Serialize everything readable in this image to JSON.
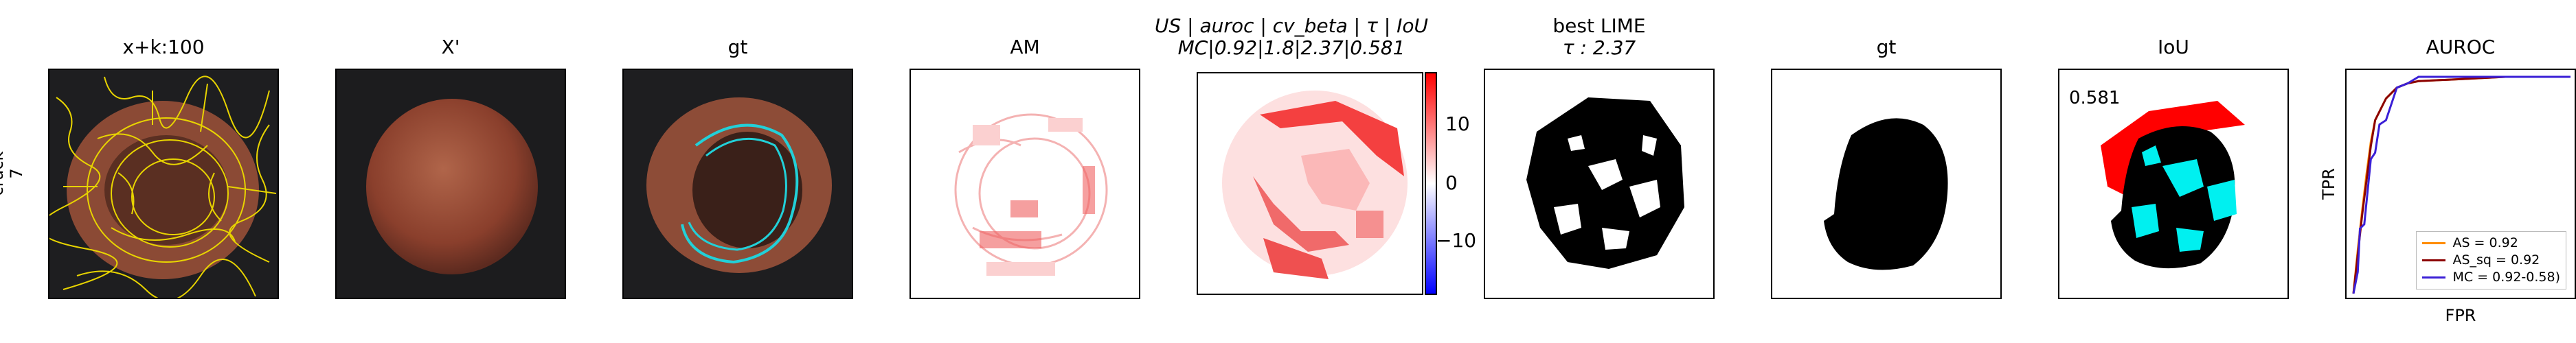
{
  "row_label": {
    "line1": "crack",
    "line2": "7"
  },
  "panels": [
    {
      "title": "x+k:100"
    },
    {
      "title": "X'"
    },
    {
      "title": "gt"
    },
    {
      "title": "AM"
    },
    {
      "title_line1": "US | auroc | cv_beta | τ | IoU",
      "title_line2": "MC|0.92|1.8|2.37|0.581"
    },
    {
      "title_line1": "best LIME",
      "title_line2": "τ : 2.37"
    },
    {
      "title": "gt"
    },
    {
      "title": "IoU",
      "annotation": "0.581"
    },
    {
      "title": "AUROC"
    }
  ],
  "colorbar": {
    "ticks": [
      "10",
      "0",
      "−10"
    ],
    "colors": {
      "top": "#ff0000",
      "mid": "#ffffff",
      "bottom": "#0000ff"
    }
  },
  "chart_data": {
    "type": "line",
    "title": "AUROC",
    "xlabel": "FPR",
    "ylabel": "TPR",
    "xlim": [
      0,
      1
    ],
    "ylim": [
      0,
      1
    ],
    "legend_position": "lower-right",
    "series": [
      {
        "name": "AS = 0.92",
        "color": "#ff8c00",
        "x": [
          0,
          0.02,
          0.04,
          0.06,
          0.08,
          0.1,
          0.15,
          0.2,
          0.25,
          0.3,
          0.5,
          0.7,
          1.0
        ],
        "y": [
          0,
          0.2,
          0.38,
          0.55,
          0.7,
          0.8,
          0.9,
          0.95,
          0.97,
          0.98,
          0.99,
          1.0,
          1.0
        ]
      },
      {
        "name": "AS_sq = 0.92",
        "color": "#8b0000",
        "x": [
          0,
          0.02,
          0.04,
          0.06,
          0.08,
          0.1,
          0.15,
          0.2,
          0.25,
          0.3,
          0.5,
          0.7,
          1.0
        ],
        "y": [
          0,
          0.18,
          0.36,
          0.52,
          0.68,
          0.8,
          0.9,
          0.95,
          0.97,
          0.98,
          0.99,
          1.0,
          1.0
        ]
      },
      {
        "name": "MC = 0.92-0.58)",
        "color": "#3a1fd6",
        "x": [
          0,
          0.02,
          0.03,
          0.05,
          0.08,
          0.1,
          0.12,
          0.15,
          0.2,
          0.25,
          0.3,
          1.0
        ],
        "y": [
          0,
          0.1,
          0.3,
          0.32,
          0.62,
          0.65,
          0.78,
          0.8,
          0.95,
          0.97,
          1.0,
          1.0
        ]
      }
    ]
  }
}
